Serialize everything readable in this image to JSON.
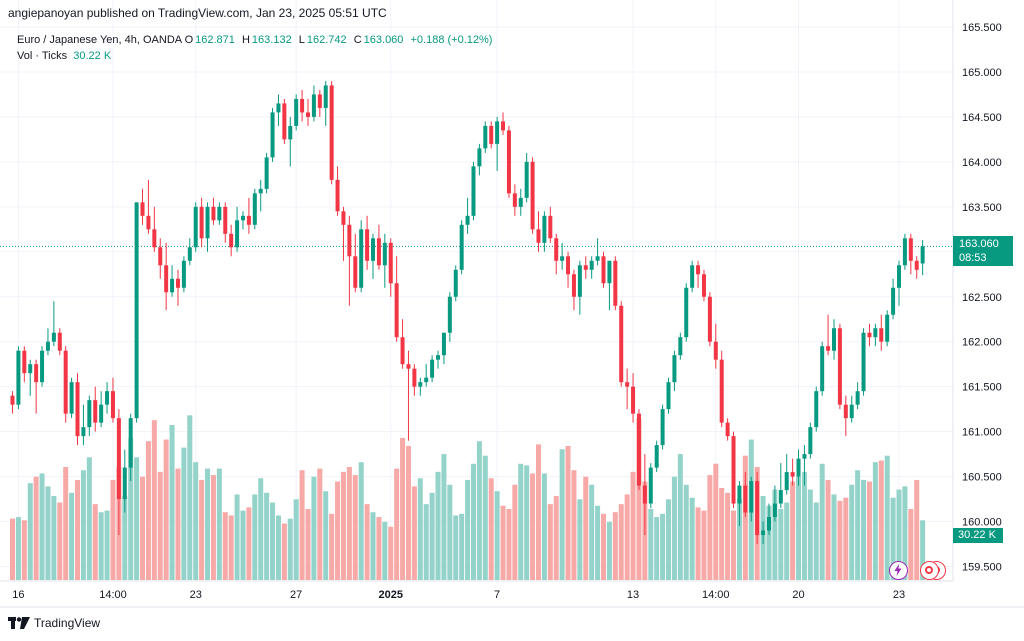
{
  "header": {
    "publisher_text": "angiepanoyan published on TradingView.com, Jan 23, 2025 05:51 UTC"
  },
  "legend": {
    "symbol": "Euro / Japanese Yen, 4h, OANDA",
    "open_label": "O",
    "open": "162.871",
    "high_label": "H",
    "high": "163.132",
    "low_label": "L",
    "low": "162.742",
    "close_label": "C",
    "close": "163.060",
    "change": "+0.188 (+0.12%)",
    "volume_label": "Vol · Ticks",
    "volume_value": "30.22 K"
  },
  "price_label": {
    "price": "163.060",
    "countdown": "08:53"
  },
  "volume_axis_label": "30.22 K",
  "footer": {
    "brand": "TradingView"
  },
  "colors": {
    "up": "#089981",
    "down": "#f23645",
    "vol_up": "#94d3c9",
    "vol_down": "#f7a9a7",
    "price_line": "#089981"
  },
  "icons": {
    "flash": "lightning-icon",
    "alerts": "target-icon"
  },
  "chart_data": {
    "type": "candlestick",
    "symbol": "EURJPY",
    "interval": "4h",
    "ylim": [
      159.35,
      165.6
    ],
    "y_ticks": [
      "165.500",
      "165.000",
      "164.500",
      "164.000",
      "163.500",
      "163.000",
      "162.500",
      "162.000",
      "161.500",
      "161.000",
      "160.500",
      "160.000",
      "159.500"
    ],
    "y_tick_values": [
      165.5,
      165.0,
      164.5,
      164.0,
      163.5,
      163.0,
      162.5,
      162.0,
      161.5,
      161.0,
      160.5,
      160.0,
      159.5
    ],
    "x_labels": [
      {
        "label": "16",
        "index": 1,
        "bold": false
      },
      {
        "label": "14:00",
        "index": 17,
        "bold": false
      },
      {
        "label": "23",
        "index": 31,
        "bold": false
      },
      {
        "label": "27",
        "index": 48,
        "bold": false
      },
      {
        "label": "2025",
        "index": 64,
        "bold": true
      },
      {
        "label": "7",
        "index": 82,
        "bold": false
      },
      {
        "label": "13",
        "index": 105,
        "bold": false
      },
      {
        "label": "14:00",
        "index": 119,
        "bold": false
      },
      {
        "label": "20",
        "index": 133,
        "bold": false
      },
      {
        "label": "23",
        "index": 150,
        "bold": false
      }
    ],
    "last_price": 163.06,
    "ohlc": [
      [
        161.4,
        161.45,
        161.2,
        161.3
      ],
      [
        161.3,
        161.95,
        161.25,
        161.9
      ],
      [
        161.9,
        161.95,
        161.55,
        161.65
      ],
      [
        161.65,
        161.8,
        161.4,
        161.75
      ],
      [
        161.75,
        161.8,
        161.2,
        161.55
      ],
      [
        161.55,
        161.95,
        161.5,
        161.9
      ],
      [
        161.9,
        162.15,
        161.85,
        162.0
      ],
      [
        162.0,
        162.45,
        161.95,
        162.1
      ],
      [
        162.1,
        162.15,
        161.85,
        161.9
      ],
      [
        161.9,
        161.95,
        161.1,
        161.2
      ],
      [
        161.2,
        161.6,
        161.15,
        161.55
      ],
      [
        161.55,
        161.65,
        160.85,
        160.95
      ],
      [
        160.95,
        161.3,
        160.85,
        161.05
      ],
      [
        161.05,
        161.4,
        160.95,
        161.35
      ],
      [
        161.35,
        161.5,
        161.0,
        161.1
      ],
      [
        161.1,
        161.45,
        161.05,
        161.3
      ],
      [
        161.3,
        161.55,
        161.2,
        161.45
      ],
      [
        161.45,
        161.6,
        161.1,
        161.15
      ],
      [
        161.15,
        161.25,
        159.85,
        160.25
      ],
      [
        160.25,
        160.8,
        160.1,
        160.6
      ],
      [
        160.6,
        161.2,
        160.45,
        161.15
      ],
      [
        161.15,
        163.55,
        161.1,
        163.55
      ],
      [
        163.55,
        163.7,
        163.3,
        163.4
      ],
      [
        163.4,
        163.8,
        163.2,
        163.25
      ],
      [
        163.25,
        163.5,
        163.0,
        163.05
      ],
      [
        163.05,
        163.15,
        162.7,
        162.85
      ],
      [
        162.85,
        163.1,
        162.35,
        162.55
      ],
      [
        162.55,
        162.85,
        162.5,
        162.7
      ],
      [
        162.7,
        162.8,
        162.4,
        162.6
      ],
      [
        162.6,
        162.95,
        162.55,
        162.9
      ],
      [
        162.9,
        163.15,
        162.85,
        163.05
      ],
      [
        163.05,
        163.55,
        163.0,
        163.5
      ],
      [
        163.5,
        163.6,
        163.05,
        163.15
      ],
      [
        163.15,
        163.55,
        163.0,
        163.5
      ],
      [
        163.5,
        163.6,
        163.3,
        163.35
      ],
      [
        163.35,
        163.55,
        163.3,
        163.5
      ],
      [
        163.5,
        163.55,
        163.1,
        163.2
      ],
      [
        163.2,
        163.3,
        162.95,
        163.05
      ],
      [
        163.05,
        163.5,
        163.0,
        163.35
      ],
      [
        163.35,
        163.45,
        163.25,
        163.4
      ],
      [
        163.4,
        163.6,
        163.2,
        163.3
      ],
      [
        163.3,
        163.7,
        163.25,
        163.65
      ],
      [
        163.65,
        163.8,
        163.45,
        163.7
      ],
      [
        163.7,
        164.1,
        163.65,
        164.05
      ],
      [
        164.05,
        164.6,
        164.0,
        164.55
      ],
      [
        164.55,
        164.75,
        164.4,
        164.65
      ],
      [
        164.65,
        164.7,
        164.2,
        164.25
      ],
      [
        164.25,
        164.5,
        163.95,
        164.4
      ],
      [
        164.4,
        164.75,
        164.35,
        164.7
      ],
      [
        164.7,
        164.8,
        164.45,
        164.55
      ],
      [
        164.55,
        164.7,
        164.4,
        164.5
      ],
      [
        164.5,
        164.85,
        164.45,
        164.75
      ],
      [
        164.75,
        164.8,
        164.5,
        164.6
      ],
      [
        164.6,
        164.9,
        164.4,
        164.85
      ],
      [
        164.85,
        164.9,
        163.75,
        163.8
      ],
      [
        163.8,
        163.95,
        163.4,
        163.45
      ],
      [
        163.45,
        163.5,
        162.9,
        163.3
      ],
      [
        163.3,
        163.4,
        162.4,
        162.95
      ],
      [
        162.95,
        163.2,
        162.55,
        162.6
      ],
      [
        162.6,
        163.35,
        162.55,
        163.25
      ],
      [
        163.25,
        163.4,
        162.8,
        162.9
      ],
      [
        162.9,
        163.2,
        162.7,
        163.15
      ],
      [
        163.15,
        163.3,
        162.8,
        162.85
      ],
      [
        162.85,
        163.2,
        162.6,
        163.1
      ],
      [
        163.1,
        163.15,
        162.5,
        162.65
      ],
      [
        162.65,
        162.95,
        162.0,
        162.05
      ],
      [
        162.05,
        162.25,
        161.7,
        161.75
      ],
      [
        161.75,
        161.9,
        160.9,
        161.7
      ],
      [
        161.7,
        161.75,
        161.4,
        161.5
      ],
      [
        161.5,
        161.6,
        161.4,
        161.55
      ],
      [
        161.55,
        161.75,
        161.5,
        161.6
      ],
      [
        161.6,
        161.85,
        161.55,
        161.8
      ],
      [
        161.8,
        161.9,
        161.7,
        161.85
      ],
      [
        161.85,
        162.1,
        161.75,
        162.1
      ],
      [
        162.1,
        162.55,
        162.0,
        162.5
      ],
      [
        162.5,
        162.85,
        162.45,
        162.8
      ],
      [
        162.8,
        163.35,
        162.75,
        163.3
      ],
      [
        163.3,
        163.6,
        163.2,
        163.4
      ],
      [
        163.4,
        164.0,
        163.35,
        163.95
      ],
      [
        163.95,
        164.2,
        163.85,
        164.15
      ],
      [
        164.15,
        164.45,
        164.1,
        164.4
      ],
      [
        164.4,
        164.45,
        164.15,
        164.2
      ],
      [
        164.2,
        164.5,
        163.9,
        164.45
      ],
      [
        164.45,
        164.55,
        164.3,
        164.35
      ],
      [
        164.35,
        164.4,
        163.6,
        163.65
      ],
      [
        163.65,
        163.75,
        163.4,
        163.5
      ],
      [
        163.5,
        163.7,
        163.4,
        163.6
      ],
      [
        163.6,
        164.1,
        163.55,
        164.0
      ],
      [
        164.0,
        164.05,
        163.2,
        163.25
      ],
      [
        163.25,
        163.45,
        163.0,
        163.1
      ],
      [
        163.1,
        163.45,
        163.0,
        163.4
      ],
      [
        163.4,
        163.5,
        163.1,
        163.15
      ],
      [
        163.15,
        163.2,
        162.75,
        162.9
      ],
      [
        162.9,
        163.1,
        162.8,
        162.95
      ],
      [
        162.95,
        163.0,
        162.6,
        162.75
      ],
      [
        162.75,
        162.8,
        162.35,
        162.5
      ],
      [
        162.5,
        162.9,
        162.3,
        162.85
      ],
      [
        162.85,
        162.95,
        162.7,
        162.8
      ],
      [
        162.8,
        162.95,
        162.7,
        162.9
      ],
      [
        162.9,
        163.15,
        162.85,
        162.95
      ],
      [
        162.95,
        163.0,
        162.6,
        162.65
      ],
      [
        162.65,
        162.9,
        162.35,
        162.9
      ],
      [
        162.9,
        162.95,
        162.35,
        162.4
      ],
      [
        162.4,
        162.45,
        161.5,
        161.55
      ],
      [
        161.55,
        161.7,
        161.25,
        161.5
      ],
      [
        161.5,
        161.65,
        161.1,
        161.2
      ],
      [
        161.2,
        161.25,
        160.35,
        160.4
      ],
      [
        160.4,
        160.75,
        159.85,
        160.2
      ],
      [
        160.2,
        160.65,
        160.15,
        160.6
      ],
      [
        160.6,
        160.9,
        160.55,
        160.85
      ],
      [
        160.85,
        161.3,
        160.8,
        161.25
      ],
      [
        161.25,
        161.6,
        161.2,
        161.55
      ],
      [
        161.55,
        161.9,
        161.45,
        161.85
      ],
      [
        161.85,
        162.1,
        161.8,
        162.05
      ],
      [
        162.05,
        162.65,
        162.0,
        162.6
      ],
      [
        162.6,
        162.9,
        162.55,
        162.85
      ],
      [
        162.85,
        162.9,
        162.6,
        162.75
      ],
      [
        162.75,
        162.8,
        162.45,
        162.5
      ],
      [
        162.5,
        162.55,
        161.95,
        162.0
      ],
      [
        162.0,
        162.2,
        161.7,
        161.8
      ],
      [
        161.8,
        161.9,
        161.05,
        161.1
      ],
      [
        161.1,
        161.15,
        160.9,
        160.95
      ],
      [
        160.95,
        161.0,
        160.15,
        160.2
      ],
      [
        160.2,
        160.45,
        159.95,
        160.4
      ],
      [
        160.4,
        160.55,
        160.05,
        160.1
      ],
      [
        160.1,
        160.5,
        160.0,
        160.45
      ],
      [
        160.45,
        160.55,
        159.75,
        159.85
      ],
      [
        159.85,
        160.0,
        159.75,
        159.9
      ],
      [
        159.9,
        160.2,
        159.85,
        160.05
      ],
      [
        160.05,
        160.4,
        160.0,
        160.2
      ],
      [
        160.2,
        160.65,
        160.15,
        160.35
      ],
      [
        160.35,
        160.75,
        160.3,
        160.55
      ],
      [
        160.55,
        160.7,
        160.4,
        160.5
      ],
      [
        160.5,
        160.8,
        160.4,
        160.7
      ],
      [
        160.7,
        160.85,
        160.4,
        160.75
      ],
      [
        160.75,
        161.1,
        160.7,
        161.05
      ],
      [
        161.05,
        161.5,
        161.0,
        161.45
      ],
      [
        161.45,
        162.0,
        161.4,
        161.95
      ],
      [
        161.95,
        162.3,
        161.85,
        161.9
      ],
      [
        161.9,
        162.25,
        161.8,
        162.15
      ],
      [
        162.15,
        162.2,
        161.25,
        161.3
      ],
      [
        161.3,
        161.4,
        160.95,
        161.15
      ],
      [
        161.15,
        161.4,
        161.1,
        161.3
      ],
      [
        161.3,
        161.55,
        161.25,
        161.45
      ],
      [
        161.45,
        162.15,
        161.4,
        162.1
      ],
      [
        162.1,
        162.2,
        161.95,
        162.05
      ],
      [
        162.05,
        162.2,
        161.95,
        162.15
      ],
      [
        162.15,
        162.3,
        161.9,
        162.0
      ],
      [
        162.0,
        162.35,
        161.95,
        162.3
      ],
      [
        162.3,
        162.7,
        162.25,
        162.6
      ],
      [
        162.6,
        162.9,
        162.4,
        162.85
      ],
      [
        162.85,
        163.2,
        162.8,
        163.15
      ],
      [
        163.15,
        163.2,
        162.75,
        162.9
      ],
      [
        162.9,
        162.95,
        162.7,
        162.8
      ],
      [
        162.87,
        163.13,
        162.74,
        163.06
      ]
    ],
    "volume_ylim": [
      0,
      1400
    ],
    "volume": [
      380,
      390,
      370,
      600,
      640,
      660,
      580,
      520,
      480,
      700,
      540,
      620,
      680,
      760,
      470,
      420,
      430,
      620,
      700,
      520,
      880,
      760,
      640,
      860,
      990,
      670,
      870,
      960,
      690,
      820,
      1020,
      730,
      620,
      690,
      650,
      690,
      420,
      400,
      530,
      430,
      450,
      530,
      630,
      540,
      480,
      400,
      350,
      380,
      500,
      680,
      440,
      640,
      690,
      550,
      410,
      610,
      670,
      700,
      650,
      730,
      470,
      420,
      390,
      360,
      330,
      690,
      880,
      830,
      580,
      630,
      470,
      540,
      670,
      780,
      590,
      400,
      410,
      620,
      720,
      860,
      770,
      630,
      550,
      460,
      440,
      590,
      720,
      710,
      660,
      840,
      660,
      470,
      520,
      810,
      830,
      680,
      500,
      640,
      590,
      460,
      410,
      360,
      420,
      470,
      530,
      670,
      1000,
      610,
      440,
      390,
      410,
      500,
      640,
      780,
      590,
      510,
      450,
      430,
      650,
      720,
      570,
      540,
      430,
      500,
      770,
      870,
      700,
      520,
      460,
      560,
      440,
      480,
      610,
      640,
      670,
      560,
      480,
      720,
      620,
      530,
      490,
      510,
      590,
      680,
      620,
      610,
      730,
      740,
      770,
      510,
      560,
      580,
      440,
      620,
      370,
      380
    ]
  }
}
